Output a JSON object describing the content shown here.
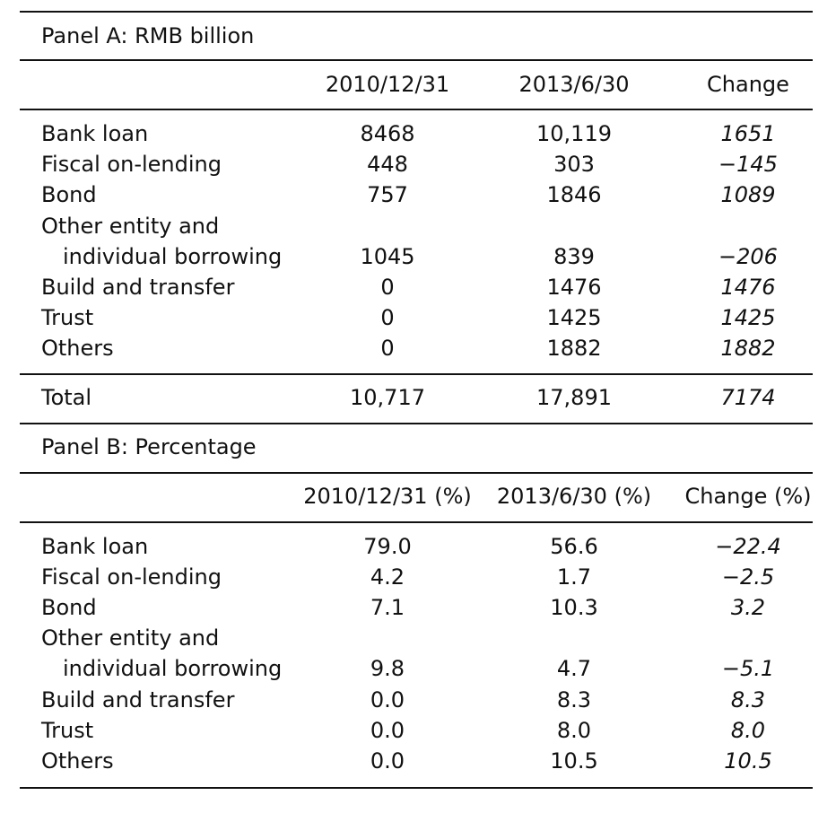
{
  "panel_a": {
    "title": "Panel A: RMB billion",
    "headers": [
      "2010/12/31",
      "2013/6/30",
      "Change"
    ],
    "rows": [
      {
        "label": "Bank loan",
        "v1": "8468",
        "v2": "10,119",
        "v3": "1651"
      },
      {
        "label": "Fiscal on-lending",
        "v1": "448",
        "v2": "303",
        "v3": "−145"
      },
      {
        "label": "Bond",
        "v1": "757",
        "v2": "1846",
        "v3": "1089"
      },
      {
        "label": "Other entity and",
        "label2": "individual borrowing",
        "v1": "1045",
        "v2": "839",
        "v3": "−206"
      },
      {
        "label": "Build and transfer",
        "v1": "0",
        "v2": "1476",
        "v3": "1476"
      },
      {
        "label": "Trust",
        "v1": "0",
        "v2": "1425",
        "v3": "1425"
      },
      {
        "label": "Others",
        "v1": "0",
        "v2": "1882",
        "v3": "1882"
      }
    ],
    "total": {
      "label": "Total",
      "v1": "10,717",
      "v2": "17,891",
      "v3": "7174"
    }
  },
  "panel_b": {
    "title": "Panel B: Percentage",
    "headers": [
      "2010/12/31 (%)",
      "2013/6/30 (%)",
      "Change (%)"
    ],
    "rows": [
      {
        "label": "Bank loan",
        "v1": "79.0",
        "v2": "56.6",
        "v3": "−22.4"
      },
      {
        "label": "Fiscal on-lending",
        "v1": "4.2",
        "v2": "1.7",
        "v3": "−2.5"
      },
      {
        "label": "Bond",
        "v1": "7.1",
        "v2": "10.3",
        "v3": "3.2"
      },
      {
        "label": "Other entity and",
        "label2": "individual borrowing",
        "v1": "9.8",
        "v2": "4.7",
        "v3": "−5.1"
      },
      {
        "label": "Build and transfer",
        "v1": "0.0",
        "v2": "8.3",
        "v3": "8.3"
      },
      {
        "label": "Trust",
        "v1": "0.0",
        "v2": "8.0",
        "v3": "8.0"
      },
      {
        "label": "Others",
        "v1": "0.0",
        "v2": "10.5",
        "v3": "10.5"
      }
    ]
  }
}
